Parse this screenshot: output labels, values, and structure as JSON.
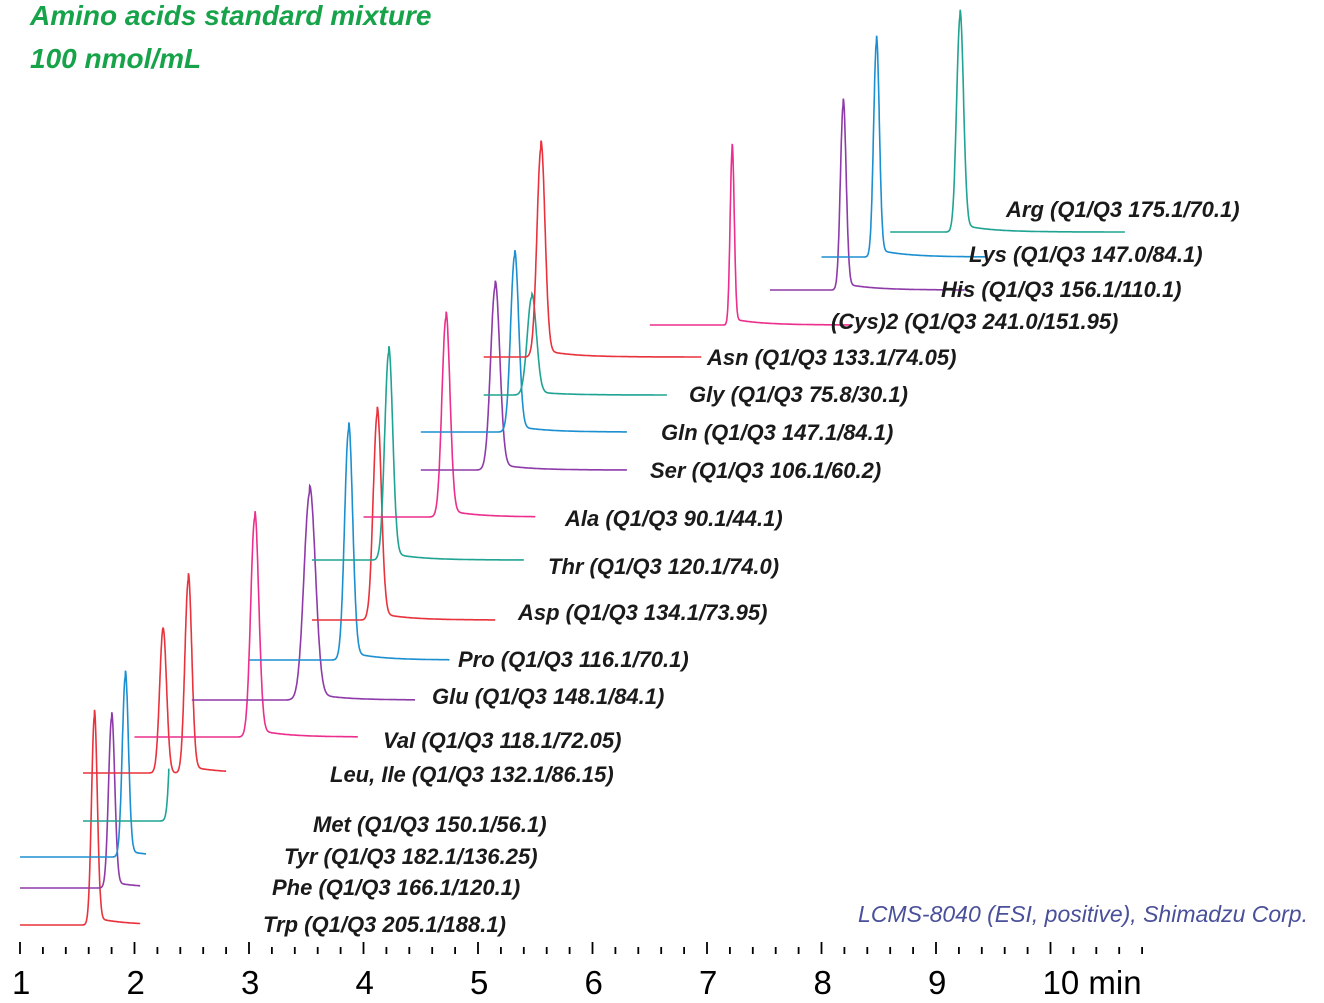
{
  "colors": {
    "title": "#17a34a",
    "credit": "#4a4f9a",
    "red": "#e8323c",
    "blue": "#1b8fd0",
    "purple": "#8e3aa8",
    "teal": "#1fa392",
    "pink": "#ec2e8c"
  },
  "title": {
    "line1": "Amino acids standard mixture",
    "line2": "100 nmol/mL"
  },
  "credit": "LCMS-8040 (ESI, positive), Shimadzu Corp.",
  "chart_data": {
    "type": "line",
    "xlabel": "min",
    "xlim": [
      1,
      11
    ],
    "x_ticks": [
      {
        "value": 1,
        "label": "1"
      },
      {
        "value": 2,
        "label": "2"
      },
      {
        "value": 3,
        "label": "3"
      },
      {
        "value": 4,
        "label": "4"
      },
      {
        "value": 5,
        "label": "5"
      },
      {
        "value": 6,
        "label": "6"
      },
      {
        "value": 7,
        "label": "7"
      },
      {
        "value": 8,
        "label": "8"
      },
      {
        "value": 9,
        "label": "9"
      },
      {
        "value": 10,
        "label": "10 min"
      }
    ],
    "y_axis": "none",
    "grid": false,
    "series": [
      {
        "label": "Trp (Q1/Q3 205.1/188.1)",
        "color": "red",
        "start": 1.0,
        "end": 2.05,
        "rt": 1.65,
        "width": 0.025
      },
      {
        "label": "Phe (Q1/Q3 166.1/120.1)",
        "color": "purple",
        "start": 1.0,
        "end": 2.05,
        "rt": 1.8,
        "width": 0.027
      },
      {
        "label": "Tyr (Q1/Q3 182.1/136.25)",
        "color": "blue",
        "start": 1.0,
        "end": 2.1,
        "rt": 1.92,
        "width": 0.027
      },
      {
        "label": "Met (Q1/Q3 150.1/56.1)",
        "color": "teal",
        "start": 1.55,
        "end": 2.3,
        "rt": 2.35,
        "width": 0.03
      },
      {
        "label": "Leu, Ile (Q1/Q3 132.1/86.15)",
        "color": "red",
        "start": 1.55,
        "end": 2.8,
        "rt": 2.47,
        "width": 0.03,
        "rt2": 2.25,
        "rel2": 0.75
      },
      {
        "label": "Val (Q1/Q3 118.1/72.05)",
        "color": "pink",
        "start": 2.0,
        "end": 3.95,
        "rt": 3.05,
        "width": 0.035
      },
      {
        "label": "Glu (Q1/Q3 148.1/84.1)",
        "color": "purple",
        "start": 2.5,
        "end": 4.45,
        "rt": 3.53,
        "width": 0.05
      },
      {
        "label": "Pro (Q1/Q3 116.1/70.1)",
        "color": "blue",
        "start": 3.0,
        "end": 4.75,
        "rt": 3.87,
        "width": 0.035
      },
      {
        "label": "Asp (Q1/Q3 134.1/73.95)",
        "color": "red",
        "start": 3.55,
        "end": 5.15,
        "rt": 4.12,
        "width": 0.035
      },
      {
        "label": "Thr (Q1/Q3 120.1/74.0)",
        "color": "teal",
        "start": 3.55,
        "end": 5.4,
        "rt": 4.22,
        "width": 0.035
      },
      {
        "label": "Ala (Q1/Q3 90.1/44.1)",
        "color": "pink",
        "start": 4.0,
        "end": 5.5,
        "rt": 4.72,
        "width": 0.035
      },
      {
        "label": "Ser (Q1/Q3 106.1/60.2)",
        "color": "purple",
        "start": 4.5,
        "end": 6.3,
        "rt": 5.15,
        "width": 0.04
      },
      {
        "label": "Gln (Q1/Q3 147.1/84.1)",
        "color": "blue",
        "start": 4.5,
        "end": 6.3,
        "rt": 5.32,
        "width": 0.035
      },
      {
        "label": "Gly (Q1/Q3 75.8/30.1)",
        "color": "teal",
        "start": 5.05,
        "end": 6.65,
        "rt": 5.47,
        "width": 0.04
      },
      {
        "label": "Asn (Q1/Q3 133.1/74.05)",
        "color": "red",
        "start": 5.05,
        "end": 6.95,
        "rt": 5.55,
        "width": 0.035
      },
      {
        "label": "(Cys)2 (Q1/Q3 241.0/151.95)",
        "color": "pink",
        "start": 6.5,
        "end": 8.25,
        "rt": 7.22,
        "width": 0.018
      },
      {
        "label": "His (Q1/Q3 156.1/110.1)",
        "color": "purple",
        "start": 7.55,
        "end": 9.25,
        "rt": 8.19,
        "width": 0.025
      },
      {
        "label": "Lys (Q1/Q3 147.0/84.1)",
        "color": "blue",
        "start": 8.0,
        "end": 9.45,
        "rt": 8.48,
        "width": 0.025
      },
      {
        "label": "Arg (Q1/Q3 175.1/70.1)",
        "color": "teal",
        "start": 8.6,
        "end": 10.65,
        "rt": 9.21,
        "width": 0.03
      }
    ]
  }
}
